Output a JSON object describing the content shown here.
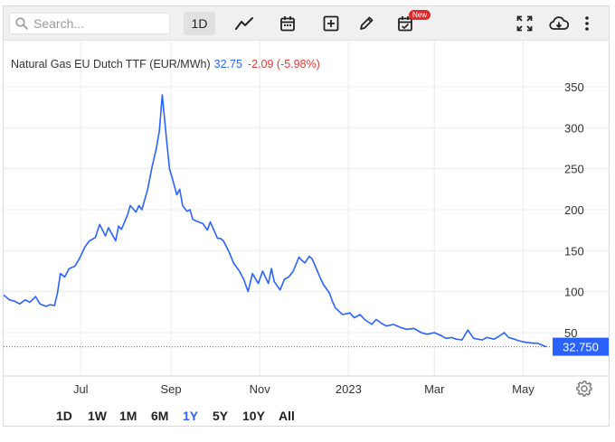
{
  "toolbar": {
    "search_placeholder": "Search...",
    "interval": "1D",
    "new_badge": "New",
    "icons": [
      "search-icon",
      "line-chart-icon",
      "calendar-icon",
      "add-indicator-icon",
      "pencil-icon",
      "calendar-check-icon",
      "fullscreen-icon",
      "cloud-download-icon",
      "more-vert-icon"
    ]
  },
  "legend": {
    "symbol": "Natural Gas EU Dutch TTF (EUR/MWh)",
    "price": "32.75",
    "change": "-2.09 (-5.98%)"
  },
  "period_buttons": [
    "1D",
    "1W",
    "1M",
    "6M",
    "1Y",
    "5Y",
    "10Y",
    "All"
  ],
  "active_period": "1Y",
  "colors": {
    "line": "#2962ff",
    "negative": "#e53935",
    "price_tag": "#2962ff"
  },
  "chart_data": {
    "type": "line",
    "x_unit": "date",
    "x_ticks": [
      {
        "label": "Jul",
        "date": "2022-07-01"
      },
      {
        "label": "Sep",
        "date": "2022-09-01"
      },
      {
        "label": "Nov",
        "date": "2022-11-01"
      },
      {
        "label": "2023",
        "date": "2023-01-01"
      },
      {
        "label": "Mar",
        "date": "2023-03-01"
      },
      {
        "label": "May",
        "date": "2023-05-01"
      }
    ],
    "y_ticks": [
      50,
      100,
      150,
      200,
      250,
      300,
      350
    ],
    "ylim": [
      -3,
      393
    ],
    "xlim": [
      "2022-05-09",
      "2023-05-20"
    ],
    "grid": true,
    "last_value_label": "32.750",
    "last_value": 32.75,
    "series": [
      {
        "values": [
          [
            "2022-05-09",
            96
          ],
          [
            "2022-05-13",
            90
          ],
          [
            "2022-05-17",
            88
          ],
          [
            "2022-05-20",
            85
          ],
          [
            "2022-05-24",
            90
          ],
          [
            "2022-05-27",
            87
          ],
          [
            "2022-05-31",
            94
          ],
          [
            "2022-06-03",
            85
          ],
          [
            "2022-06-07",
            82
          ],
          [
            "2022-06-10",
            84
          ],
          [
            "2022-06-13",
            83
          ],
          [
            "2022-06-15",
            98
          ],
          [
            "2022-06-17",
            122
          ],
          [
            "2022-06-20",
            118
          ],
          [
            "2022-06-23",
            128
          ],
          [
            "2022-06-27",
            131
          ],
          [
            "2022-06-30",
            140
          ],
          [
            "2022-07-04",
            155
          ],
          [
            "2022-07-07",
            162
          ],
          [
            "2022-07-11",
            166
          ],
          [
            "2022-07-14",
            182
          ],
          [
            "2022-07-18",
            168
          ],
          [
            "2022-07-20",
            178
          ],
          [
            "2022-07-25",
            162
          ],
          [
            "2022-07-27",
            180
          ],
          [
            "2022-07-29",
            176
          ],
          [
            "2022-08-02",
            193
          ],
          [
            "2022-08-04",
            205
          ],
          [
            "2022-08-08",
            197
          ],
          [
            "2022-08-10",
            205
          ],
          [
            "2022-08-12",
            200
          ],
          [
            "2022-08-16",
            225
          ],
          [
            "2022-08-19",
            252
          ],
          [
            "2022-08-22",
            275
          ],
          [
            "2022-08-24",
            296
          ],
          [
            "2022-08-26",
            340
          ],
          [
            "2022-08-29",
            285
          ],
          [
            "2022-08-31",
            250
          ],
          [
            "2022-09-02",
            238
          ],
          [
            "2022-09-05",
            218
          ],
          [
            "2022-09-07",
            225
          ],
          [
            "2022-09-09",
            205
          ],
          [
            "2022-09-12",
            198
          ],
          [
            "2022-09-14",
            200
          ],
          [
            "2022-09-16",
            188
          ],
          [
            "2022-09-20",
            185
          ],
          [
            "2022-09-23",
            183
          ],
          [
            "2022-09-26",
            175
          ],
          [
            "2022-09-28",
            185
          ],
          [
            "2022-10-03",
            165
          ],
          [
            "2022-10-05",
            165
          ],
          [
            "2022-10-07",
            162
          ],
          [
            "2022-10-11",
            148
          ],
          [
            "2022-10-14",
            135
          ],
          [
            "2022-10-18",
            125
          ],
          [
            "2022-10-21",
            115
          ],
          [
            "2022-10-24",
            100
          ],
          [
            "2022-10-27",
            122
          ],
          [
            "2022-10-31",
            110
          ],
          [
            "2022-11-03",
            125
          ],
          [
            "2022-11-07",
            110
          ],
          [
            "2022-11-09",
            128
          ],
          [
            "2022-11-11",
            112
          ],
          [
            "2022-11-15",
            102
          ],
          [
            "2022-11-18",
            115
          ],
          [
            "2022-11-21",
            118
          ],
          [
            "2022-11-24",
            125
          ],
          [
            "2022-11-28",
            142
          ],
          [
            "2022-11-30",
            138
          ],
          [
            "2022-12-02",
            135
          ],
          [
            "2022-12-05",
            143
          ],
          [
            "2022-12-07",
            140
          ],
          [
            "2022-12-09",
            132
          ],
          [
            "2022-12-13",
            115
          ],
          [
            "2022-12-15",
            108
          ],
          [
            "2022-12-19",
            98
          ],
          [
            "2022-12-21",
            88
          ],
          [
            "2022-12-23",
            80
          ],
          [
            "2022-12-28",
            72
          ],
          [
            "2023-01-02",
            74
          ],
          [
            "2023-01-05",
            68
          ],
          [
            "2023-01-09",
            72
          ],
          [
            "2023-01-12",
            66
          ],
          [
            "2023-01-17",
            60
          ],
          [
            "2023-01-20",
            66
          ],
          [
            "2023-01-24",
            61
          ],
          [
            "2023-01-27",
            58
          ],
          [
            "2023-02-01",
            60
          ],
          [
            "2023-02-06",
            56
          ],
          [
            "2023-02-10",
            54
          ],
          [
            "2023-02-15",
            55
          ],
          [
            "2023-02-20",
            50
          ],
          [
            "2023-02-24",
            48
          ],
          [
            "2023-03-01",
            50
          ],
          [
            "2023-03-06",
            46
          ],
          [
            "2023-03-09",
            43
          ],
          [
            "2023-03-13",
            44
          ],
          [
            "2023-03-16",
            42
          ],
          [
            "2023-03-20",
            41
          ],
          [
            "2023-03-24",
            53
          ],
          [
            "2023-03-28",
            43
          ],
          [
            "2023-04-03",
            41
          ],
          [
            "2023-04-06",
            44
          ],
          [
            "2023-04-11",
            42
          ],
          [
            "2023-04-14",
            45
          ],
          [
            "2023-04-18",
            50
          ],
          [
            "2023-04-21",
            44
          ],
          [
            "2023-04-25",
            42
          ],
          [
            "2023-04-28",
            40
          ],
          [
            "2023-05-03",
            38
          ],
          [
            "2023-05-08",
            37
          ],
          [
            "2023-05-11",
            37
          ],
          [
            "2023-05-15",
            34
          ],
          [
            "2023-05-17",
            32.75
          ]
        ]
      }
    ]
  }
}
